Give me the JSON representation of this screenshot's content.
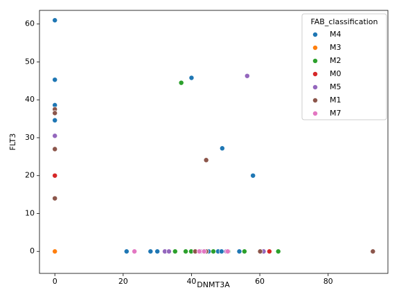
{
  "chart_data": {
    "type": "scatter",
    "x_label": "DNMT3A",
    "y_label": "FLT3",
    "legend_title": "FAB_classification",
    "legend_position": "upper right",
    "xlim": [
      -4.5,
      97.5
    ],
    "ylim": [
      -5.8,
      63.6
    ],
    "xticks": [
      0,
      20,
      40,
      60,
      80
    ],
    "yticks": [
      0,
      10,
      20,
      30,
      40,
      50,
      60
    ],
    "series": [
      {
        "name": "M4",
        "color": "#1f77b4",
        "x": [
          0,
          0,
          0,
          0,
          40,
          49,
          58,
          21,
          28,
          30,
          45,
          47.8,
          48.8,
          54
        ],
        "values": [
          61,
          45.3,
          38.6,
          34.6,
          45.8,
          27.2,
          20,
          0,
          0,
          0,
          0,
          0,
          0,
          0
        ]
      },
      {
        "name": "M3",
        "color": "#ff7f0e",
        "x": [
          0
        ],
        "values": [
          0
        ]
      },
      {
        "name": "M2",
        "color": "#2ca02c",
        "x": [
          37,
          35.2,
          38.3,
          39.9,
          46.4,
          50.8,
          55.5,
          65.4
        ],
        "values": [
          44.5,
          0,
          0,
          0,
          0,
          0,
          0,
          0
        ]
      },
      {
        "name": "M0",
        "color": "#d62728",
        "x": [
          0,
          62.8
        ],
        "values": [
          20,
          0
        ]
      },
      {
        "name": "M5",
        "color": "#9467bd",
        "x": [
          56.3,
          0,
          32.2,
          33.4,
          42.7,
          50.2,
          61.1
        ],
        "values": [
          46.3,
          30.5,
          0,
          0,
          0,
          0,
          0
        ]
      },
      {
        "name": "M1",
        "color": "#8c564b",
        "x": [
          0,
          0,
          0,
          0,
          44.3,
          41.1,
          44.3,
          60.1,
          93.1
        ],
        "values": [
          37.5,
          36.5,
          27,
          14,
          24.1,
          0,
          0,
          0,
          0
        ]
      },
      {
        "name": "M7",
        "color": "#e377c2",
        "x": [
          23.3,
          42.3,
          43.7,
          50.6
        ],
        "values": [
          0,
          0,
          0,
          0
        ]
      }
    ]
  }
}
